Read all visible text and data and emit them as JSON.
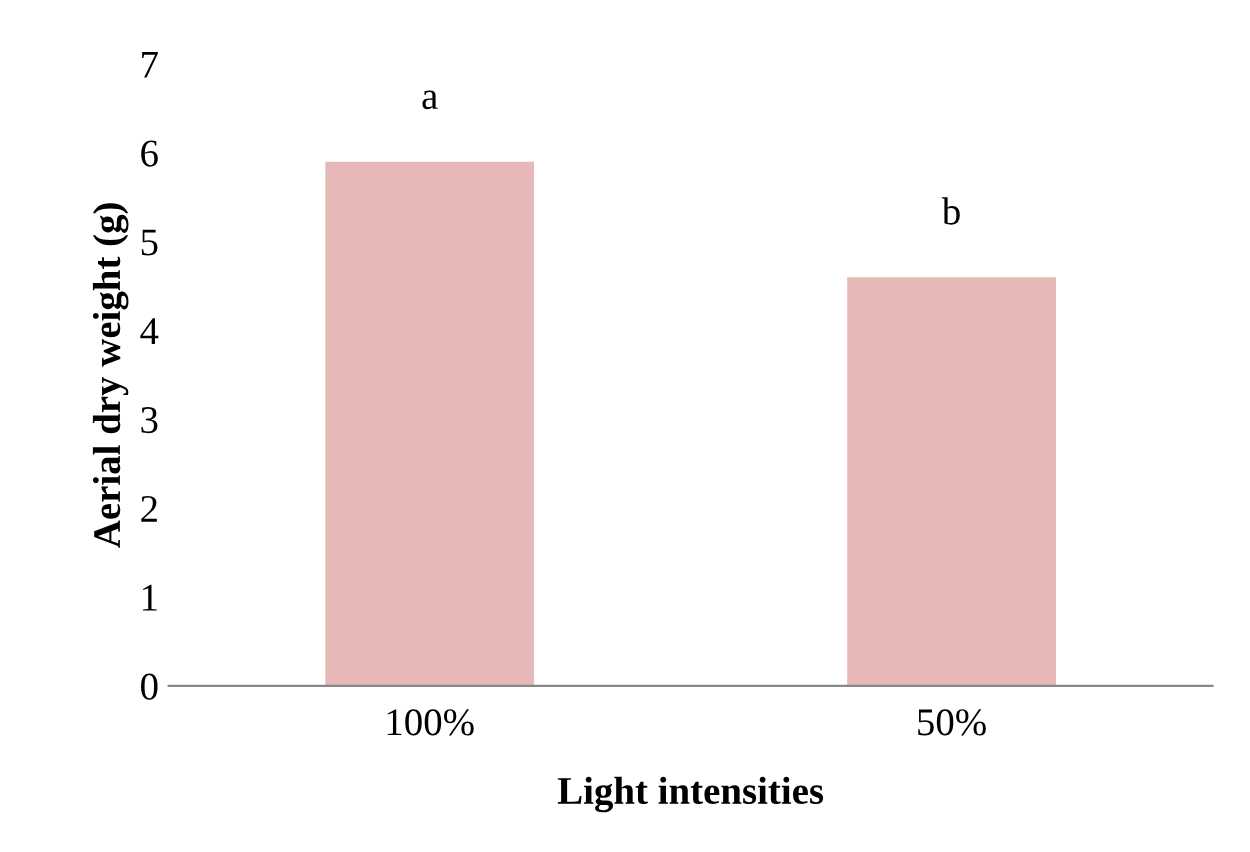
{
  "chart_data": {
    "type": "bar",
    "xlabel": "Light intensities",
    "ylabel": "Aerial dry weight (g)",
    "categories": [
      "100%",
      "50%"
    ],
    "series": [
      {
        "color": "#e6b8b7",
        "values": [
          5.9,
          4.6
        ]
      }
    ],
    "ylim": [
      0,
      7
    ],
    "yticks": [
      0,
      1,
      2,
      3,
      4,
      5,
      6,
      7
    ],
    "grid": false,
    "legend": false,
    "annotations": [
      "a",
      "b"
    ]
  }
}
